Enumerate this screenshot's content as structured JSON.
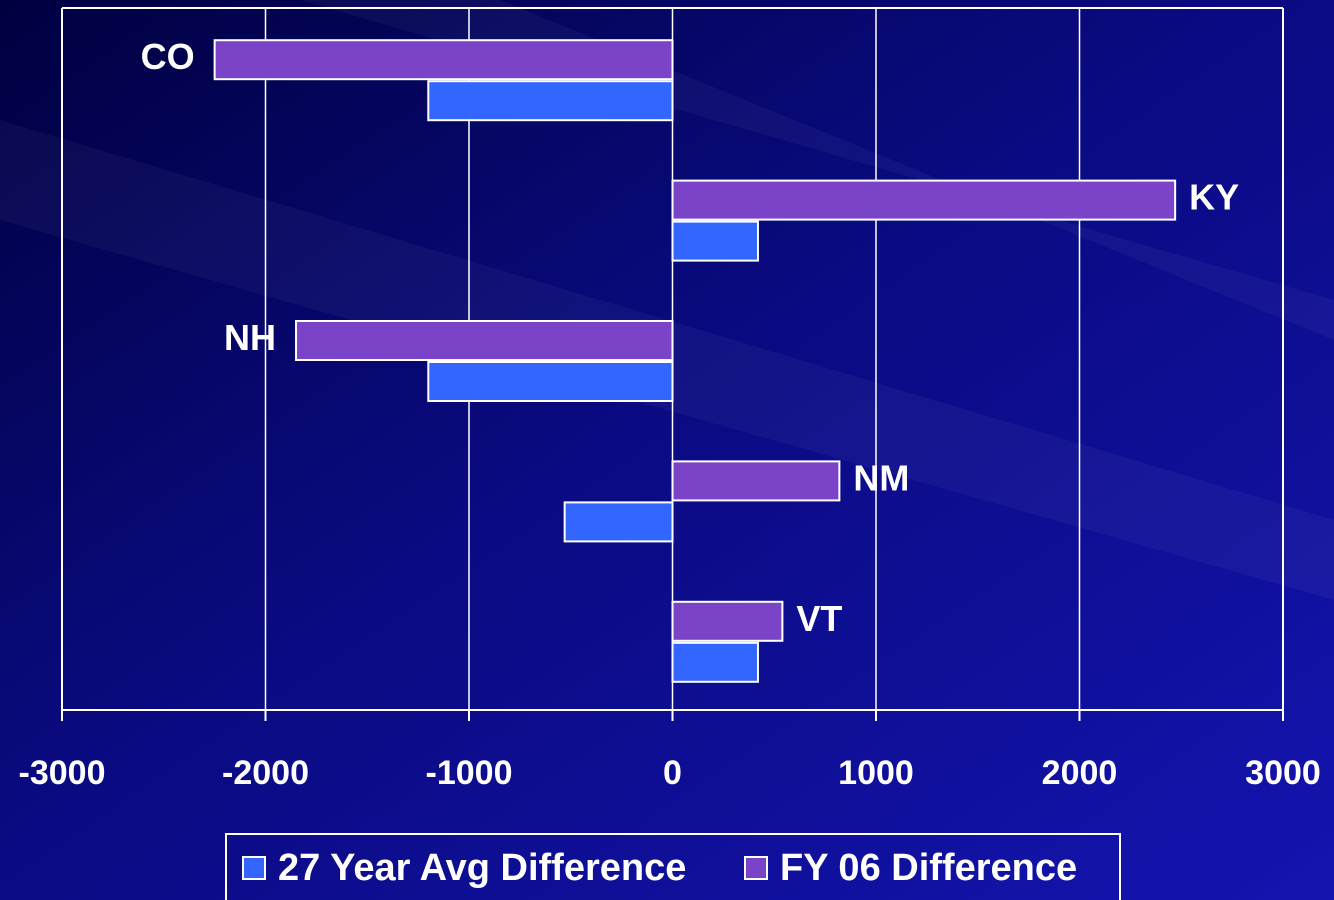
{
  "chart_data": {
    "type": "bar",
    "orientation": "horizontal",
    "categories": [
      "CO",
      "KY",
      "NH",
      "NM",
      "VT"
    ],
    "series": [
      {
        "name": "27 Year Avg Difference",
        "color": "#3366ff",
        "values": [
          -1200,
          420,
          -1200,
          -530,
          420
        ]
      },
      {
        "name": "FY 06 Difference",
        "color": "#7b44c8",
        "values": [
          -2250,
          2470,
          -1850,
          820,
          540
        ]
      }
    ],
    "xlim": [
      -3000,
      3000
    ],
    "xticks": [
      -3000,
      -2000,
      -1000,
      0,
      1000,
      2000,
      3000
    ],
    "grid": true,
    "legend": "bottom"
  }
}
